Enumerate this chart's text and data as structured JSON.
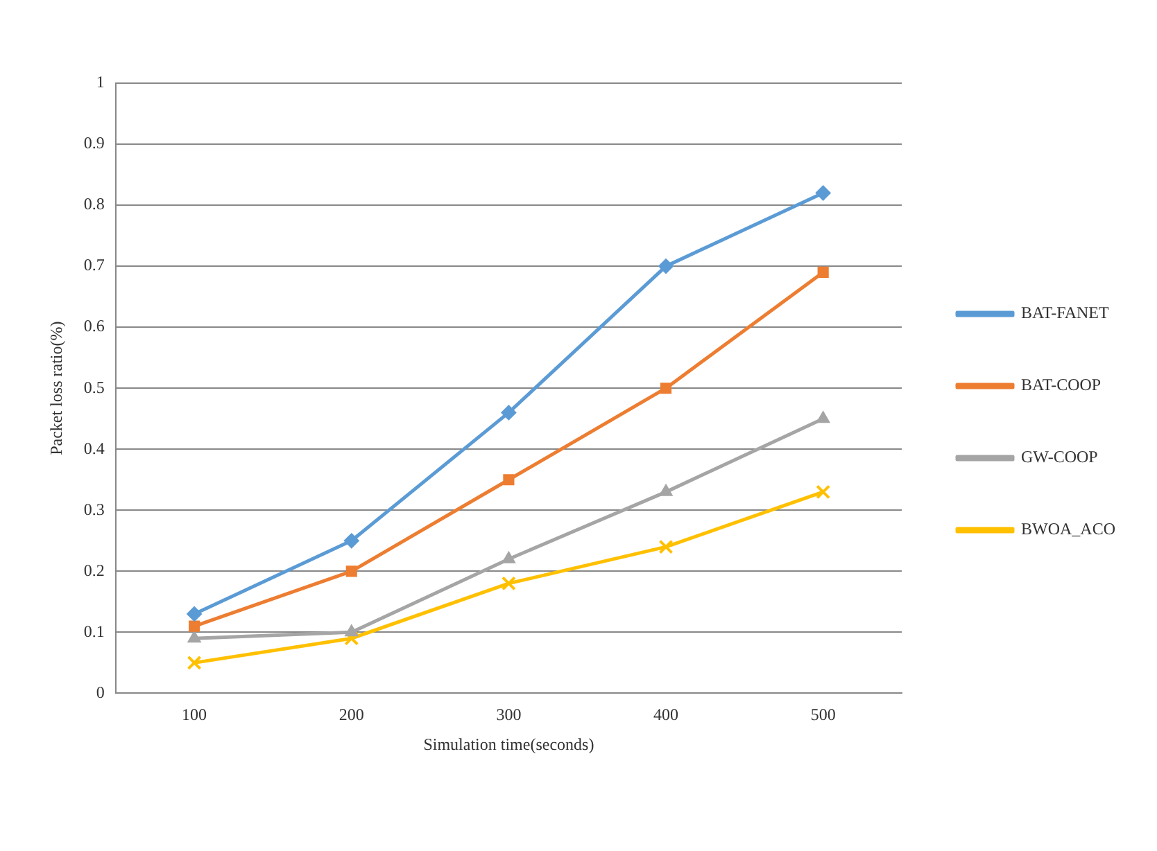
{
  "chart_data": {
    "type": "line",
    "xlabel": "Simulation time(seconds)",
    "ylabel": "Packet loss ratio(%)",
    "categories": [
      "100",
      "200",
      "300",
      "400",
      "500"
    ],
    "series": [
      {
        "name": "BAT-FANET",
        "color": "#5b9bd5",
        "marker": "diamond",
        "values": [
          0.13,
          0.25,
          0.46,
          0.7,
          0.82
        ]
      },
      {
        "name": "BAT-COOP",
        "color": "#ed7d31",
        "marker": "square",
        "values": [
          0.11,
          0.2,
          0.35,
          0.5,
          0.69
        ]
      },
      {
        "name": "GW-COOP",
        "color": "#a5a5a5",
        "marker": "triangle",
        "values": [
          0.09,
          0.1,
          0.22,
          0.33,
          0.45
        ]
      },
      {
        "name": "BWOA_ACO",
        "color": "#ffc000",
        "marker": "cross",
        "values": [
          0.05,
          0.09,
          0.18,
          0.24,
          0.33
        ]
      }
    ],
    "ylim": [
      0,
      1
    ],
    "yticks": [
      0,
      0.1,
      0.2,
      0.3,
      0.4,
      0.5,
      0.6,
      0.7,
      0.8,
      0.9,
      1
    ],
    "grid": "y",
    "legend": "right",
    "line_style": "solid"
  }
}
